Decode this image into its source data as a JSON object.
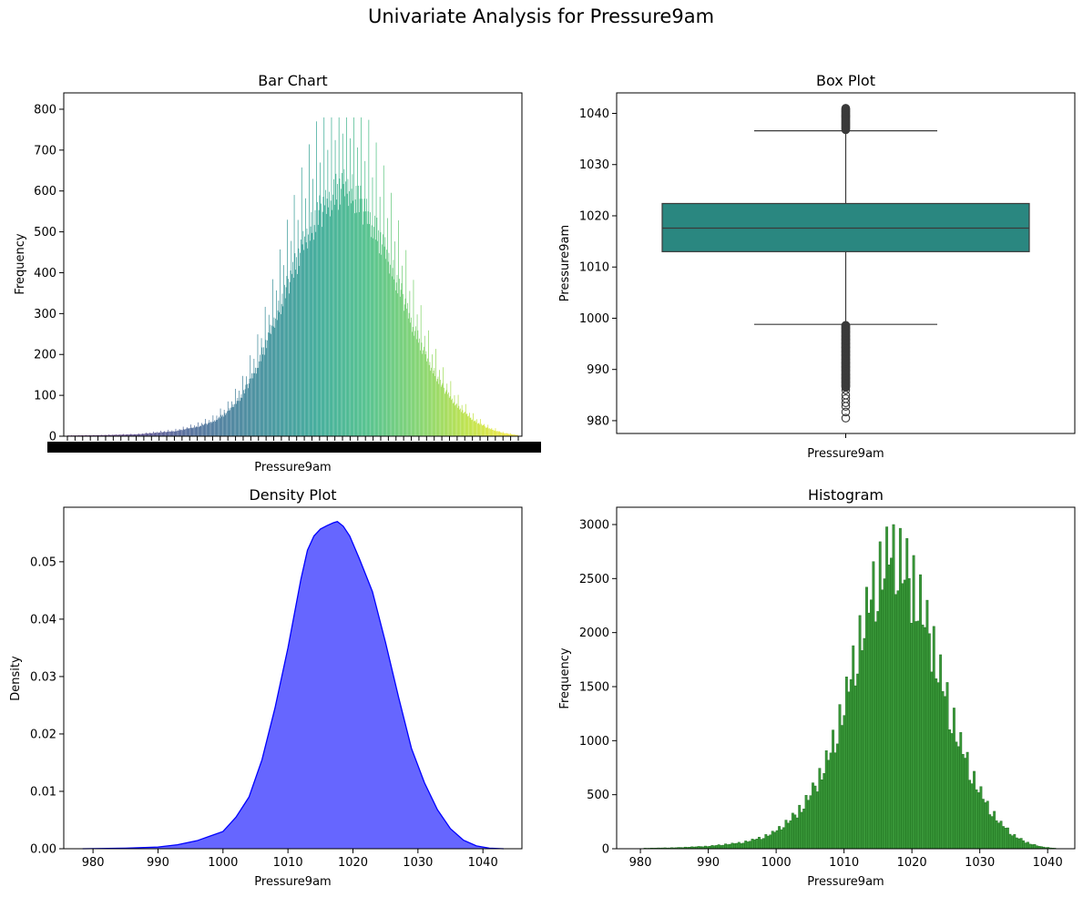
{
  "figure": {
    "title": "Univariate Analysis for Pressure9am"
  },
  "chart_data": [
    {
      "type": "bar",
      "title": "Bar Chart",
      "xlabel": "Pressure9am",
      "ylabel": "Frequency",
      "ylim": [
        0,
        840
      ],
      "yticks": [
        0,
        100,
        200,
        300,
        400,
        500,
        600,
        700,
        800
      ],
      "colormap": "viridis",
      "note_categories": "one bar per distinct Pressure9am reading (0.1 hPa steps, roughly 980.5 to 1041.0); tick labels overlap into an unreadable band",
      "x_range": [
        980.5,
        1041.0
      ],
      "peak": {
        "x": 1017.5,
        "value": 780
      },
      "profile_points": [
        [
          980.5,
          2
        ],
        [
          985,
          3
        ],
        [
          990,
          6
        ],
        [
          995,
          16
        ],
        [
          998,
          30
        ],
        [
          1000,
          45
        ],
        [
          1002,
          75
        ],
        [
          1004,
          130
        ],
        [
          1006,
          220
        ],
        [
          1008,
          340
        ],
        [
          1010,
          470
        ],
        [
          1012,
          590
        ],
        [
          1014,
          690
        ],
        [
          1016,
          755
        ],
        [
          1017.5,
          780
        ],
        [
          1019,
          760
        ],
        [
          1021,
          690
        ],
        [
          1023,
          590
        ],
        [
          1025,
          470
        ],
        [
          1027,
          340
        ],
        [
          1029,
          230
        ],
        [
          1031,
          150
        ],
        [
          1033,
          90
        ],
        [
          1035,
          50
        ],
        [
          1037,
          25
        ],
        [
          1039,
          10
        ],
        [
          1041,
          3
        ]
      ],
      "grid": false
    },
    {
      "type": "box",
      "title": "Box Plot",
      "xlabel": "Pressure9am",
      "ylabel": "Pressure9am",
      "ylim": [
        977.5,
        1044
      ],
      "yticks": [
        980,
        990,
        1000,
        1010,
        1020,
        1030,
        1040
      ],
      "stats": {
        "whisker_low": 998.8,
        "q1": 1013.0,
        "median": 1017.6,
        "q3": 1022.4,
        "whisker_high": 1036.6
      },
      "outliers_low": [
        980.5,
        981.7,
        982.8,
        983.5,
        984.3,
        985.0,
        986.0,
        986.8,
        987.5,
        988.3,
        989.0,
        989.8,
        990.5,
        991.3,
        992.0,
        992.8,
        993.5,
        994.3,
        995.0,
        995.8,
        996.5,
        997.3,
        998.0,
        998.6
      ],
      "outliers_high": [
        1036.8,
        1037.3,
        1037.9,
        1038.5,
        1039.1,
        1039.7,
        1040.3,
        1040.9
      ],
      "color": "#2a8780",
      "grid": false
    },
    {
      "type": "area",
      "title": "Density Plot",
      "xlabel": "Pressure9am",
      "ylabel": "Density",
      "xlim": [
        975.5,
        1046
      ],
      "ylim": [
        0,
        0.0595
      ],
      "xticks": [
        980,
        990,
        1000,
        1010,
        1020,
        1030,
        1040
      ],
      "yticks": [
        0.0,
        0.01,
        0.02,
        0.03,
        0.04,
        0.05
      ],
      "ytick_labels": [
        "0.00",
        "0.01",
        "0.02",
        "0.03",
        "0.04",
        "0.05"
      ],
      "x": [
        978.4,
        985,
        990,
        993,
        996,
        998,
        1000,
        1002,
        1004,
        1006,
        1008,
        1010,
        1012,
        1013,
        1014,
        1015,
        1016,
        1017,
        1017.6,
        1018.5,
        1019.5,
        1021,
        1023,
        1025,
        1027,
        1029,
        1031,
        1033,
        1035,
        1037,
        1039,
        1041,
        1043.2
      ],
      "y": [
        0.0,
        0.0001,
        0.0003,
        0.0007,
        0.0014,
        0.0022,
        0.003,
        0.0055,
        0.009,
        0.0155,
        0.0245,
        0.035,
        0.047,
        0.052,
        0.0545,
        0.0557,
        0.0563,
        0.0568,
        0.057,
        0.0562,
        0.0545,
        0.0505,
        0.0448,
        0.036,
        0.0265,
        0.0175,
        0.0115,
        0.0068,
        0.0035,
        0.0015,
        0.0005,
        0.0001,
        0.0
      ],
      "fill_color": "#6666ff",
      "line_color": "#0000ff",
      "grid": false
    },
    {
      "type": "bar",
      "subtype": "histogram",
      "title": "Histogram",
      "xlabel": "Pressure9am",
      "ylabel": "Frequency",
      "xlim": [
        976.5,
        1044
      ],
      "ylim": [
        0,
        3160
      ],
      "xticks": [
        980,
        990,
        1000,
        1010,
        1020,
        1030,
        1040
      ],
      "yticks": [
        0,
        500,
        1000,
        1500,
        2000,
        2500,
        3000
      ],
      "bin_width": 0.33,
      "x_range": [
        980.5,
        1041.0
      ],
      "peak": {
        "x": 1016.2,
        "value": 3000
      },
      "profile_points": [
        [
          980.5,
          5
        ],
        [
          985,
          10
        ],
        [
          990,
          25
        ],
        [
          995,
          60
        ],
        [
          998,
          110
        ],
        [
          1000,
          170
        ],
        [
          1002,
          280
        ],
        [
          1004,
          420
        ],
        [
          1006,
          640
        ],
        [
          1008,
          950
        ],
        [
          1010,
          1400
        ],
        [
          1012,
          1950
        ],
        [
          1014,
          2450
        ],
        [
          1016,
          2800
        ],
        [
          1017.5,
          2850
        ],
        [
          1019,
          2750
        ],
        [
          1021,
          2450
        ],
        [
          1023,
          2000
        ],
        [
          1025,
          1500
        ],
        [
          1027,
          1050
        ],
        [
          1029,
          700
        ],
        [
          1031,
          430
        ],
        [
          1033,
          250
        ],
        [
          1035,
          130
        ],
        [
          1037,
          60
        ],
        [
          1039,
          20
        ],
        [
          1041,
          5
        ]
      ],
      "color": "#228b22",
      "grid": false
    }
  ]
}
